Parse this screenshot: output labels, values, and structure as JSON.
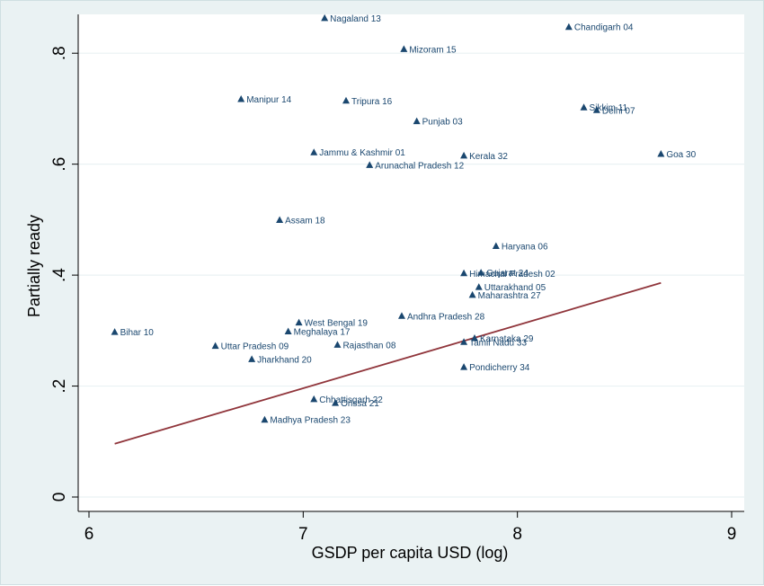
{
  "chart_data": {
    "type": "scatter",
    "title": "",
    "xlabel": "GSDP per capita USD (log)",
    "ylabel": "Partially ready",
    "xlim": [
      6,
      9
    ],
    "ylim": [
      0,
      0.87
    ],
    "x_ticks": [
      6,
      7,
      8,
      9
    ],
    "x_tick_labels": [
      "6",
      "7",
      "8",
      "9"
    ],
    "y_ticks": [
      0,
      0.2,
      0.4,
      0.6,
      0.8
    ],
    "y_tick_labels": [
      "0",
      ".2",
      ".4",
      ".6",
      ".8"
    ],
    "grid": true,
    "legend": "none",
    "marker": "triangle",
    "colors": {
      "marker": "#1a476f",
      "fit_line": "#90353b",
      "plot_background": "#ffffff",
      "outer_background": "#eaf2f3",
      "grid": "#eaf2f3"
    },
    "points": [
      {
        "label": "Nagaland 13",
        "x": 7.1,
        "y": 0.863
      },
      {
        "label": "Chandigarh 04",
        "x": 8.24,
        "y": 0.847
      },
      {
        "label": "Mizoram 15",
        "x": 7.47,
        "y": 0.807
      },
      {
        "label": "Manipur 14",
        "x": 6.71,
        "y": 0.717
      },
      {
        "label": "Tripura 16",
        "x": 7.2,
        "y": 0.714
      },
      {
        "label": "Sikkim 11",
        "x": 8.31,
        "y": 0.702
      },
      {
        "label": "Delhi 07",
        "x": 8.37,
        "y": 0.697
      },
      {
        "label": "Punjab 03",
        "x": 7.53,
        "y": 0.677
      },
      {
        "label": "Jammu & Kashmir 01",
        "x": 7.05,
        "y": 0.621
      },
      {
        "label": "Kerala 32",
        "x": 7.75,
        "y": 0.615
      },
      {
        "label": "Goa 30",
        "x": 8.67,
        "y": 0.618
      },
      {
        "label": "Arunachal Pradesh 12",
        "x": 7.31,
        "y": 0.598
      },
      {
        "label": "Assam 18",
        "x": 6.89,
        "y": 0.499
      },
      {
        "label": "Haryana 06",
        "x": 7.9,
        "y": 0.452
      },
      {
        "label": "Himachal Pradesh 02",
        "x": 7.75,
        "y": 0.403
      },
      {
        "label": "Gujarat 24",
        "x": 7.83,
        "y": 0.404
      },
      {
        "label": "Uttarakhand 05",
        "x": 7.82,
        "y": 0.378
      },
      {
        "label": "Maharashtra 27",
        "x": 7.79,
        "y": 0.364
      },
      {
        "label": "Andhra Pradesh 28",
        "x": 7.46,
        "y": 0.326
      },
      {
        "label": "West Bengal 19",
        "x": 6.98,
        "y": 0.314
      },
      {
        "label": "Meghalaya 17",
        "x": 6.93,
        "y": 0.298
      },
      {
        "label": "Bihar 10",
        "x": 6.12,
        "y": 0.297
      },
      {
        "label": "Karnataka 29",
        "x": 7.8,
        "y": 0.286
      },
      {
        "label": "Tamil Nadu 33",
        "x": 7.75,
        "y": 0.279
      },
      {
        "label": "Rajasthan 08",
        "x": 7.16,
        "y": 0.274
      },
      {
        "label": "Uttar Pradesh 09",
        "x": 6.59,
        "y": 0.272
      },
      {
        "label": "Jharkhand 20",
        "x": 6.76,
        "y": 0.248
      },
      {
        "label": "Pondicherry 34",
        "x": 7.75,
        "y": 0.234
      },
      {
        "label": "Chhattisgarh 22",
        "x": 7.05,
        "y": 0.176
      },
      {
        "label": "Orissa 21",
        "x": 7.15,
        "y": 0.169
      },
      {
        "label": "Madhya Pradesh 23",
        "x": 6.82,
        "y": 0.139
      }
    ],
    "fit_line": {
      "x": [
        6.12,
        8.67
      ],
      "y": [
        0.096,
        0.386
      ]
    }
  }
}
